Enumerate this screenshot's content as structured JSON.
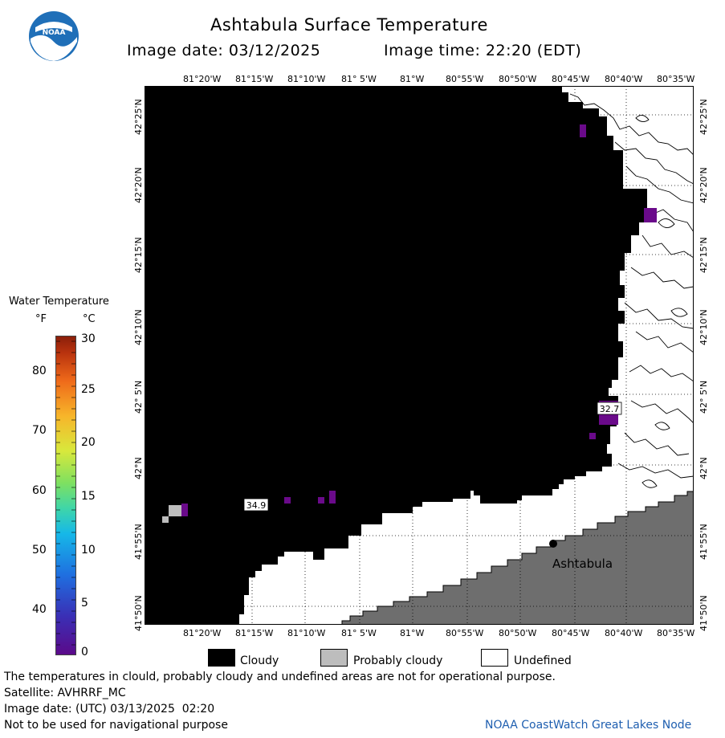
{
  "header": {
    "title": "Ashtabula Surface Temperature",
    "image_date_label": "Image date: 03/12/2025",
    "image_time_label": "Image time: 22:20 (EDT)"
  },
  "map": {
    "top_lon_labels": [
      "81°20'W",
      "81°15'W",
      "81°10'W",
      "81° 5'W",
      "81°W",
      "80°55'W",
      "80°50'W",
      "80°45'W",
      "80°40'W",
      "80°35'W"
    ],
    "bottom_lon_labels": [
      "81°20'W",
      "81°15'W",
      "81°10'W",
      "81° 5'W",
      "81°W",
      "80°55'W",
      "80°50'W",
      "80°45'W",
      "80°40'W",
      "80°35'W"
    ],
    "lat_labels": [
      "42°25'N",
      "42°20'N",
      "42°15'N",
      "42°10'N",
      "42° 5'N",
      "42°N",
      "41°55'N",
      "41°50'N"
    ],
    "city_label": "Ashtabula",
    "value_labels": [
      "32.7",
      "34.9"
    ],
    "colors": {
      "cloudy": "#000000",
      "probably_cloudy": "#bdbdbd",
      "undefined": "#ffffff",
      "land": "#6e6e6e",
      "cold_water": "#6a0a8a"
    }
  },
  "colorbar": {
    "title": "Water Temperature",
    "unit_f": "°F",
    "unit_c": "°C",
    "f_ticks": [
      "80",
      "70",
      "60",
      "50",
      "40"
    ],
    "c_ticks": [
      "30",
      "25",
      "20",
      "15",
      "10",
      "5",
      "0"
    ]
  },
  "legend": {
    "cloudy": "Cloudy",
    "probably_cloudy": "Probably cloudy",
    "undefined": "Undefined"
  },
  "footer": {
    "note": "The temperatures in clould, probably cloudy and undefined areas are not for operational purpose.",
    "satellite": "Satellite: AVHRRF_MC",
    "utc_date": "Image date: (UTC) 03/13/2025  02:20",
    "nav_warning": "Not to be used for navigational purpose",
    "credit": "NOAA CoastWatch Great Lakes Node"
  }
}
